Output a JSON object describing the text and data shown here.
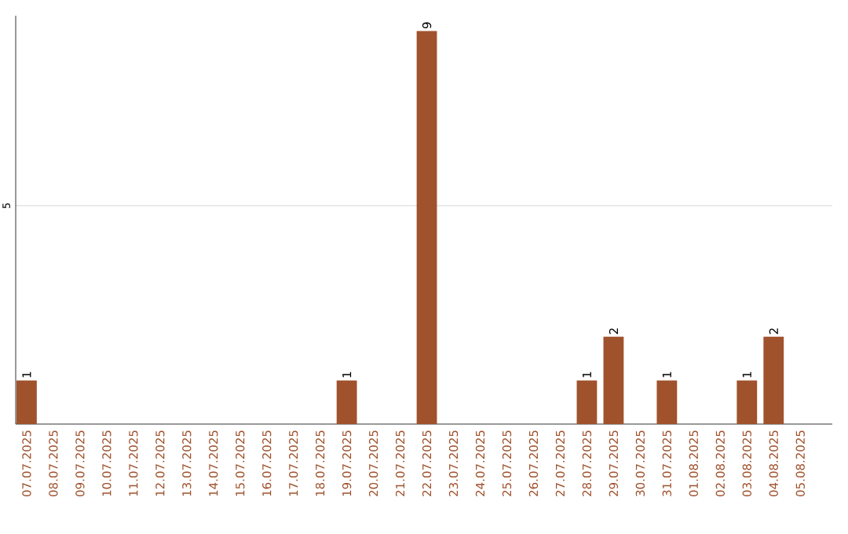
{
  "chart_data": {
    "type": "bar",
    "categories": [
      "07.07.2025",
      "08.07.2025",
      "09.07.2025",
      "10.07.2025",
      "11.07.2025",
      "12.07.2025",
      "13.07.2025",
      "14.07.2025",
      "15.07.2025",
      "16.07.2025",
      "17.07.2025",
      "18.07.2025",
      "19.07.2025",
      "20.07.2025",
      "21.07.2025",
      "22.07.2025",
      "23.07.2025",
      "24.07.2025",
      "25.07.2025",
      "26.07.2025",
      "27.07.2025",
      "28.07.2025",
      "29.07.2025",
      "30.07.2025",
      "31.07.2025",
      "01.08.2025",
      "02.08.2025",
      "03.08.2025",
      "04.08.2025",
      "05.08.2025"
    ],
    "values": [
      1,
      0,
      0,
      0,
      0,
      0,
      0,
      0,
      0,
      0,
      0,
      0,
      1,
      0,
      0,
      9,
      0,
      0,
      0,
      0,
      0,
      1,
      2,
      0,
      1,
      0,
      0,
      1,
      2,
      0
    ],
    "value_labels": [
      "1",
      null,
      null,
      null,
      null,
      null,
      null,
      null,
      null,
      null,
      null,
      null,
      "1",
      null,
      null,
      "9",
      null,
      null,
      null,
      null,
      null,
      "1",
      "2",
      null,
      "1",
      null,
      null,
      "1",
      "2",
      null
    ],
    "color": "#a0522d",
    "ylim": [
      0,
      9.35
    ],
    "yticks": [
      5
    ],
    "grid": "y"
  }
}
